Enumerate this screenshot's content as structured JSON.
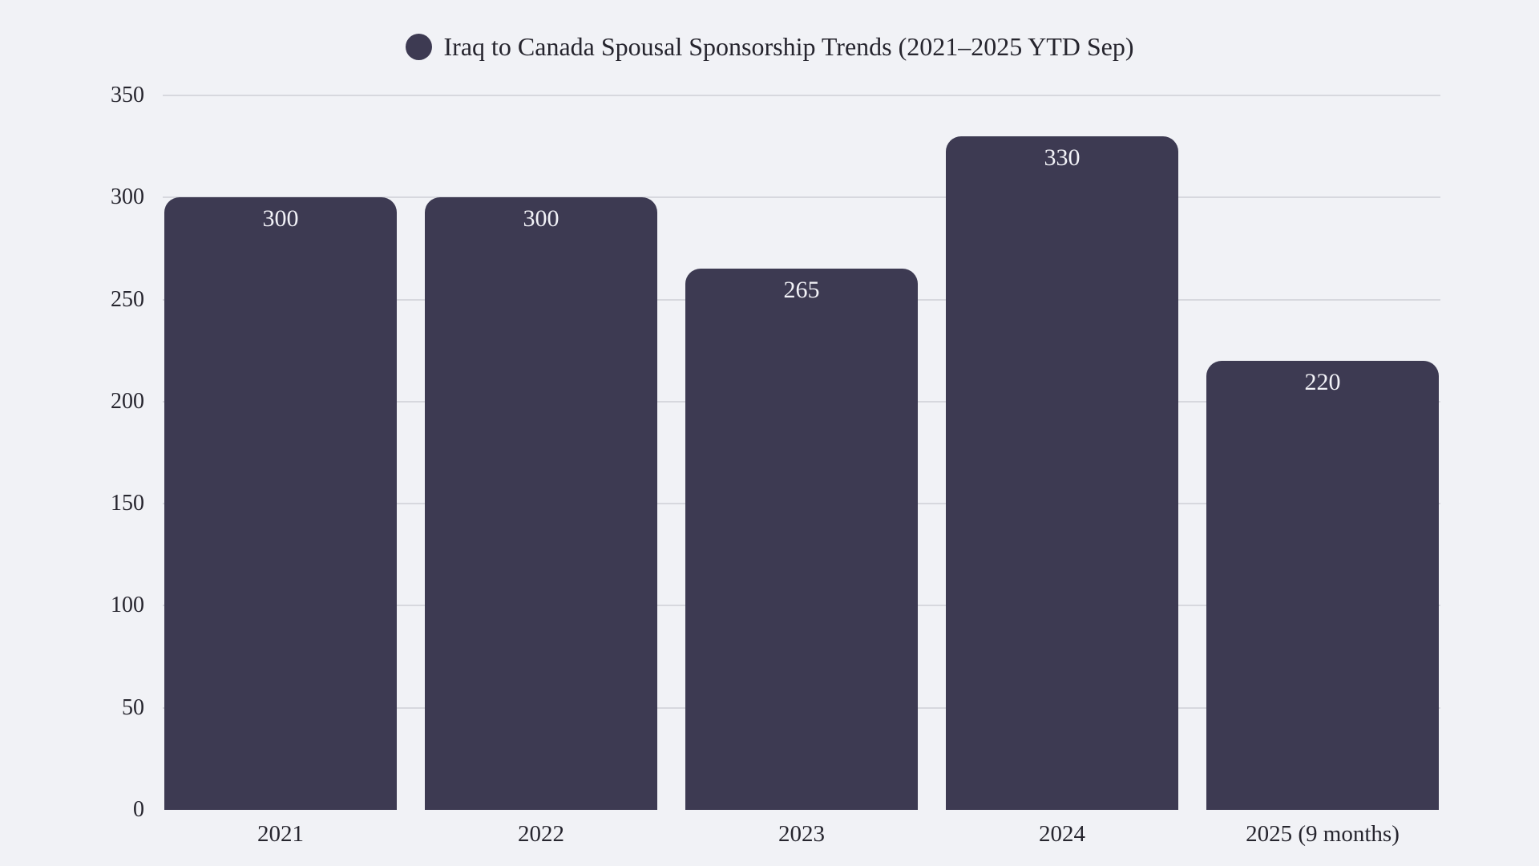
{
  "colors": {
    "background": "#f1f2f6",
    "bar": "#3d3a52",
    "gridline": "#d7d8de",
    "axis_text": "#26252e",
    "title_text": "#26252e",
    "value_text": "#f2f2f7"
  },
  "legend": {
    "marker": "series-dot"
  },
  "chart_data": {
    "type": "bar",
    "title": "Iraq to Canada Spousal Sponsorship Trends (2021–2025 YTD Sep)",
    "categories": [
      "2021",
      "2022",
      "2023",
      "2024",
      "2025 (9 months)"
    ],
    "values": [
      300,
      300,
      265,
      330,
      220
    ],
    "xlabel": "",
    "ylabel": "",
    "ylim": [
      0,
      350
    ],
    "yticks": [
      0,
      50,
      100,
      150,
      200,
      250,
      300,
      350
    ],
    "grid": true,
    "legend_position": "top",
    "bar_color": "#3d3a52"
  }
}
